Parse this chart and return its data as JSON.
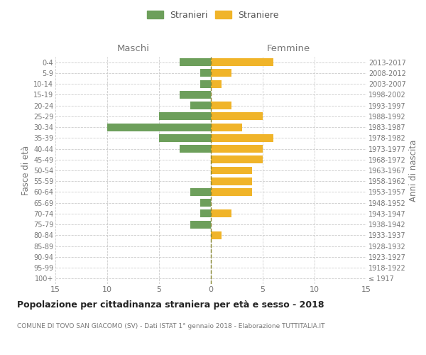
{
  "age_groups": [
    "100+",
    "95-99",
    "90-94",
    "85-89",
    "80-84",
    "75-79",
    "70-74",
    "65-69",
    "60-64",
    "55-59",
    "50-54",
    "45-49",
    "40-44",
    "35-39",
    "30-34",
    "25-29",
    "20-24",
    "15-19",
    "10-14",
    "5-9",
    "0-4"
  ],
  "birth_years": [
    "≤ 1917",
    "1918-1922",
    "1923-1927",
    "1928-1932",
    "1933-1937",
    "1938-1942",
    "1943-1947",
    "1948-1952",
    "1953-1957",
    "1958-1962",
    "1963-1967",
    "1968-1972",
    "1973-1977",
    "1978-1982",
    "1983-1987",
    "1988-1992",
    "1993-1997",
    "1998-2002",
    "2003-2007",
    "2008-2012",
    "2013-2017"
  ],
  "males": [
    0,
    0,
    0,
    0,
    0,
    2,
    1,
    1,
    2,
    0,
    0,
    0,
    3,
    5,
    10,
    5,
    2,
    3,
    1,
    1,
    3
  ],
  "females": [
    0,
    0,
    0,
    0,
    1,
    0,
    2,
    0,
    4,
    4,
    4,
    5,
    5,
    6,
    3,
    5,
    2,
    0,
    1,
    2,
    6
  ],
  "male_color": "#6d9f5b",
  "female_color": "#f0b429",
  "background_color": "#ffffff",
  "grid_color": "#cccccc",
  "dashed_line_color": "#888833",
  "title": "Popolazione per cittadinanza straniera per età e sesso - 2018",
  "subtitle": "COMUNE DI TOVO SAN GIACOMO (SV) - Dati ISTAT 1° gennaio 2018 - Elaborazione TUTTITALIA.IT",
  "xlabel_left": "Maschi",
  "xlabel_right": "Femmine",
  "ylabel_left": "Fasce di età",
  "ylabel_right": "Anni di nascita",
  "legend_stranieri": "Stranieri",
  "legend_straniere": "Straniere",
  "xlim": 15
}
